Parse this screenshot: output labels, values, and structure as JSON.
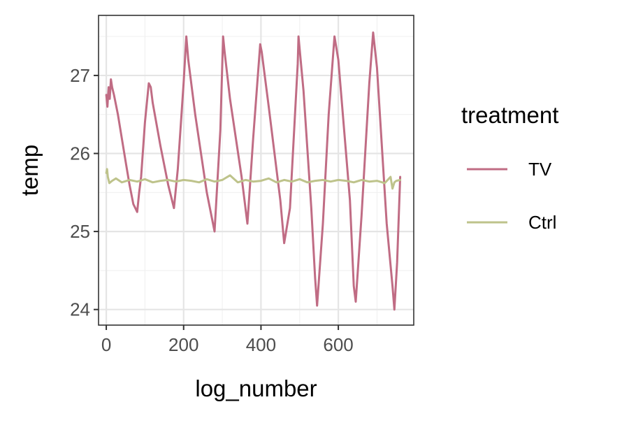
{
  "chart_data": {
    "type": "line",
    "xlabel": "log_number",
    "ylabel": "temp",
    "xlim": [
      -20,
      795
    ],
    "ylim": [
      23.8,
      27.77
    ],
    "x_ticks": [
      0,
      200,
      400,
      600
    ],
    "y_ticks": [
      24,
      25,
      26,
      27
    ],
    "grid": true,
    "legend": {
      "title": "treatment",
      "position": "right",
      "entries": [
        "TV",
        "Ctrl"
      ]
    },
    "series": [
      {
        "name": "TV",
        "color": "#c06c84",
        "x": [
          0,
          3,
          6,
          9,
          12,
          15,
          20,
          30,
          40,
          50,
          60,
          70,
          75,
          80,
          85,
          90,
          100,
          110,
          115,
          120,
          140,
          160,
          175,
          185,
          200,
          207,
          212,
          230,
          260,
          280,
          295,
          302,
          306,
          320,
          350,
          365,
          380,
          398,
          402,
          420,
          450,
          460,
          475,
          495,
          497,
          510,
          530,
          540,
          545,
          560,
          575,
          590,
          600,
          615,
          630,
          640,
          645,
          660,
          680,
          690,
          700,
          725,
          740,
          745,
          752,
          760
        ],
        "values": [
          26.75,
          26.6,
          26.85,
          26.7,
          26.95,
          26.85,
          26.75,
          26.5,
          26.2,
          25.9,
          25.6,
          25.35,
          25.3,
          25.25,
          25.5,
          25.7,
          26.4,
          26.9,
          26.85,
          26.65,
          26.1,
          25.6,
          25.3,
          25.8,
          26.9,
          27.5,
          27.2,
          26.5,
          25.5,
          25.0,
          26.3,
          27.5,
          27.3,
          26.7,
          25.7,
          25.1,
          26.2,
          27.4,
          27.3,
          26.6,
          25.4,
          24.85,
          25.3,
          27.15,
          27.5,
          26.8,
          25.3,
          24.4,
          24.05,
          25.1,
          26.5,
          27.5,
          27.2,
          26.3,
          25.4,
          24.3,
          24.1,
          25.2,
          26.9,
          27.55,
          27.1,
          25.1,
          24.3,
          24.0,
          24.6,
          25.7
        ]
      },
      {
        "name": "Ctrl",
        "color": "#bec38b",
        "x": [
          0,
          2,
          4,
          8,
          15,
          25,
          40,
          60,
          80,
          100,
          120,
          140,
          160,
          180,
          200,
          220,
          240,
          260,
          280,
          300,
          320,
          340,
          360,
          380,
          400,
          420,
          440,
          460,
          480,
          500,
          520,
          540,
          560,
          580,
          600,
          620,
          640,
          660,
          680,
          700,
          720,
          735,
          740,
          745,
          750,
          760
        ],
        "values": [
          25.75,
          25.8,
          25.7,
          25.62,
          25.65,
          25.68,
          25.63,
          25.66,
          25.64,
          25.67,
          25.63,
          25.65,
          25.66,
          25.64,
          25.66,
          25.65,
          25.63,
          25.67,
          25.64,
          25.66,
          25.72,
          25.63,
          25.66,
          25.64,
          25.65,
          25.68,
          25.63,
          25.66,
          25.64,
          25.67,
          25.63,
          25.65,
          25.66,
          25.64,
          25.66,
          25.65,
          25.63,
          25.66,
          25.64,
          25.65,
          25.62,
          25.7,
          25.55,
          25.63,
          25.65,
          25.66
        ]
      }
    ]
  }
}
